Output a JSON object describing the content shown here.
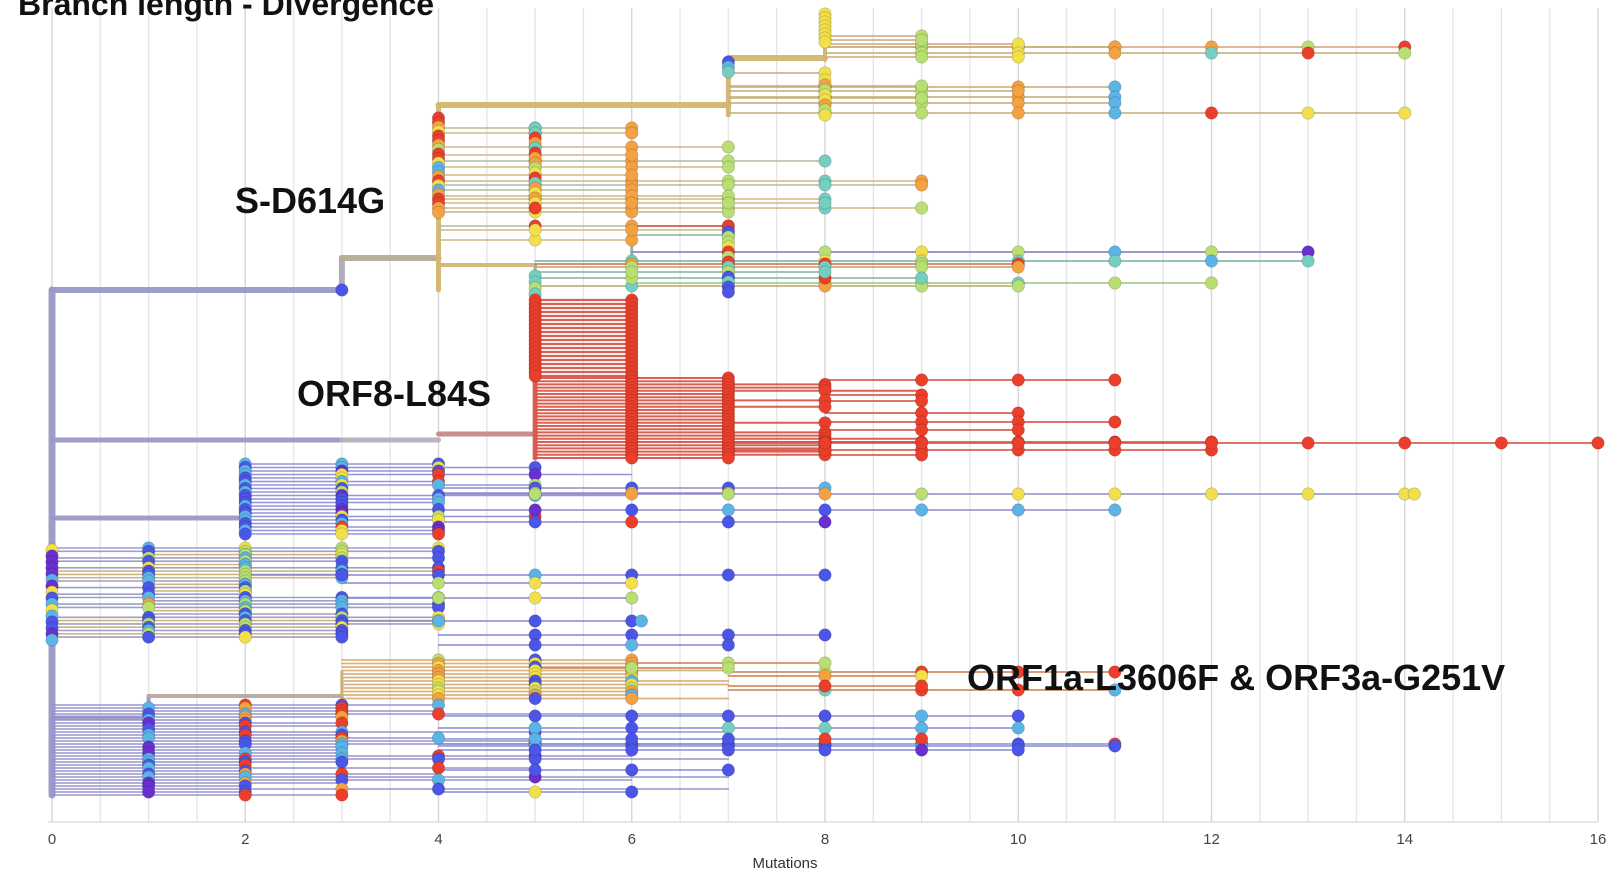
{
  "title": "Branch length - Divergence",
  "chart_data": {
    "type": "tree",
    "xlabel": "Mutations",
    "xlim": [
      0,
      16
    ],
    "x_ticks": [
      0,
      2,
      4,
      6,
      8,
      10,
      12,
      14,
      16
    ],
    "grid": "vertical",
    "annotations": [
      "S-D614G",
      "ORF8-L84S",
      "ORF1a-L3606F & ORF3a-G251V"
    ],
    "colors": {
      "backbone": "#9a99c6",
      "clade_s_d614g": "#d3b770",
      "clade_orf8": "#d9584c",
      "red": "#ec3f2b",
      "orange": "#f4a142",
      "yellow": "#f1e04c",
      "lime": "#b9de72",
      "teal": "#74cfc0",
      "sky": "#5bb3e6",
      "blue": "#4b55e8",
      "purple": "#6a2fcf"
    },
    "tips": [
      {
        "x": 16,
        "color": "red"
      },
      {
        "x": 14.1,
        "color": "yellow"
      },
      {
        "x": 14,
        "color": "red"
      },
      {
        "x": 14,
        "color": "lime"
      },
      {
        "x": 13,
        "color": "purple"
      },
      {
        "x": 13,
        "color": "teal"
      },
      {
        "x": 12,
        "color": "lime"
      },
      {
        "x": 12,
        "color": "red"
      },
      {
        "x": 11,
        "color": "sky"
      },
      {
        "x": 11,
        "color": "red"
      },
      {
        "x": 10,
        "color": "blue"
      },
      {
        "x": 8,
        "color": "blue"
      }
    ]
  }
}
